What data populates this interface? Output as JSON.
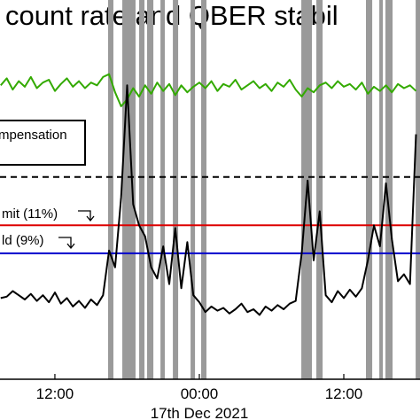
{
  "chart_data": {
    "type": "line",
    "title": "count rate and QBER stabil",
    "xlabel": "17th Dec 2021",
    "x": [
      7.5,
      8,
      8.5,
      9,
      9.5,
      10,
      10.5,
      11,
      11.5,
      12,
      12.5,
      13,
      13.5,
      14,
      14.5,
      15,
      15.5,
      16,
      16.5,
      17,
      17.5,
      18,
      18.5,
      19,
      19.5,
      20,
      20.5,
      21,
      21.5,
      22,
      22.5,
      23,
      23.5,
      24,
      24.5,
      25,
      25.5,
      26,
      26.5,
      27,
      27.5,
      28,
      28.5,
      29,
      29.5,
      30,
      30.5,
      31,
      31.5,
      32,
      32.5,
      33,
      33.5,
      34,
      34.5,
      35,
      35.5,
      36,
      36.5,
      37,
      37.5,
      38,
      38.5,
      39,
      39.5,
      40,
      40.5,
      41,
      41.5,
      42
    ],
    "series": [
      {
        "color": "#33aa00",
        "values": [
          21.0,
          21.5,
          20.7,
          21.3,
          20.9,
          21.6,
          20.8,
          21.2,
          21.4,
          20.6,
          21.1,
          21.5,
          20.9,
          21.3,
          20.8,
          21.2,
          21.0,
          21.6,
          21.8,
          20.5,
          19.5,
          20.0,
          20.8,
          20.2,
          21.0,
          20.4,
          21.2,
          20.6,
          21.1,
          20.3,
          21.0,
          20.5,
          20.9,
          21.2,
          20.8,
          21.3,
          20.6,
          21.1,
          20.9,
          21.4,
          20.7,
          21.0,
          21.3,
          20.8,
          21.1,
          20.6,
          21.2,
          20.9,
          21.4,
          20.7,
          20.2,
          20.8,
          20.5,
          21.0,
          21.2,
          20.8,
          21.3,
          20.9,
          21.1,
          20.7,
          21.2,
          20.4,
          20.9,
          20.6,
          21.0,
          20.5,
          21.1,
          20.8,
          21.0,
          20.6
        ]
      },
      {
        "color": "#000000",
        "values": [
          5.8,
          5.9,
          6.3,
          6.0,
          5.7,
          6.1,
          5.6,
          6.0,
          5.5,
          6.2,
          5.4,
          5.8,
          5.2,
          5.6,
          5.1,
          5.7,
          5.3,
          6.0,
          9.2,
          8.0,
          13.0,
          21.0,
          12.5,
          11.0,
          10.2,
          8.0,
          7.2,
          9.5,
          6.8,
          10.8,
          6.5,
          9.8,
          6.0,
          5.5,
          4.8,
          5.2,
          4.9,
          5.1,
          4.7,
          5.0,
          5.4,
          4.8,
          5.0,
          4.6,
          5.2,
          4.9,
          5.3,
          5.0,
          5.4,
          5.6,
          9.0,
          14.2,
          8.5,
          12.0,
          6.0,
          5.5,
          6.3,
          5.8,
          6.4,
          5.9,
          6.5,
          8.5,
          11.0,
          9.5,
          14.0,
          10.0,
          7.0,
          7.5,
          6.8,
          17.5
        ]
      }
    ],
    "shaded": [
      [
        16.42,
        16.86
      ],
      [
        17.6,
        18.7
      ],
      [
        19.0,
        19.44
      ],
      [
        19.66,
        20.18
      ],
      [
        20.77,
        21.13
      ],
      [
        21.8,
        22.24
      ],
      [
        23.27,
        23.64
      ],
      [
        24.15,
        24.59
      ],
      [
        32.47,
        33.35
      ],
      [
        33.72,
        34.24
      ],
      [
        37.84,
        38.36
      ],
      [
        38.95,
        39.24
      ],
      [
        39.46,
        40.05
      ],
      [
        41.97,
        42.33
      ]
    ],
    "hlines": [
      {
        "value": 14.45,
        "color": "#000000",
        "dashed": true
      },
      {
        "value": 11,
        "color": "#dd0000"
      },
      {
        "value": 9,
        "color": "#0000cc"
      }
    ],
    "annotations": [
      "mpensation",
      "mit (11%)",
      "ld (9%)"
    ],
    "xlim": [
      7.44,
      42.33
    ],
    "ylim": [
      0,
      27.1
    ],
    "xticks": [
      {
        "value": 12,
        "label": "12:00"
      },
      {
        "value": 24,
        "label": "00:00"
      },
      {
        "value": 36,
        "label": "12:00"
      }
    ]
  }
}
